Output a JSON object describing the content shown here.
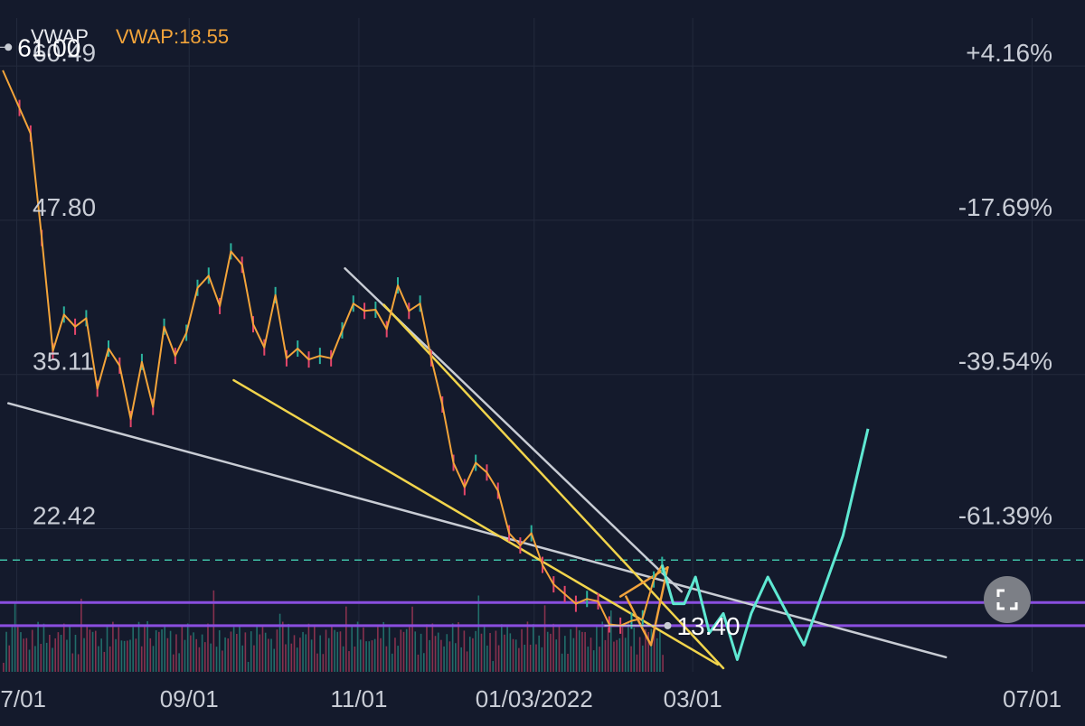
{
  "header": {
    "indicator_label": "VWAP",
    "indicator_value": "VWAP:18.55"
  },
  "colors": {
    "background": "#141a2c",
    "grid": "#232a3d",
    "axis_text": "#c9cdd6",
    "vwap_orange": "#f3a43a",
    "candle_up": "#2bb39e",
    "candle_down": "#e5466b",
    "trendline_white": "#c8ccd4",
    "trendline_yellow": "#f1d44c",
    "wedge_orange": "#f2a33c",
    "projection_cyan": "#5fe8d2",
    "purple_line": "#8a4ee0",
    "dashed_cyan": "#3fbfa6"
  },
  "fullscreen_icon": "fullscreen-expand-icon",
  "chart_data": {
    "type": "line",
    "title": "",
    "xlabel": "",
    "ylabel": "",
    "y_scale": "linear",
    "ylim": [
      9.6,
      63.4
    ],
    "grid": true,
    "x_tick_labels": [
      "07/01",
      "09/01",
      "11/01",
      "01/03/2022",
      "03/01",
      "07/01"
    ],
    "x_tick_dates": [
      "2021-07-01",
      "2021-09-01",
      "2021-11-01",
      "2022-01-03",
      "2022-03-01",
      "2022-07-01"
    ],
    "xlim": [
      "2021-06-25",
      "2022-07-20"
    ],
    "y_ticks": [
      {
        "value": 60.49,
        "label": "60.49"
      },
      {
        "value": 47.8,
        "label": "47.80"
      },
      {
        "value": 35.11,
        "label": "35.11"
      },
      {
        "value": 22.42,
        "label": "22.42"
      }
    ],
    "right_percent_labels": [
      {
        "value": 60.49,
        "label": "+4.16%"
      },
      {
        "value": 47.8,
        "label": "-17.69%"
      },
      {
        "value": 35.11,
        "label": "-39.54%"
      },
      {
        "value": 22.42,
        "label": "-61.39%"
      }
    ],
    "annotations": [
      {
        "label": "61.00",
        "x": "2021-06-28",
        "y": 61.0
      },
      {
        "label": "13.40",
        "x": "2022-02-20",
        "y": 13.4
      }
    ],
    "horizontal_lines": [
      {
        "name": "dashed",
        "y": 18.8,
        "style": "dashed"
      },
      {
        "name": "purple-upper",
        "y": 15.3,
        "style": "solid"
      },
      {
        "name": "purple-lower",
        "y": 13.4,
        "style": "solid"
      }
    ],
    "series": [
      {
        "name": "price",
        "x": [
          "2021-06-26",
          "2021-07-02",
          "2021-07-06",
          "2021-07-10",
          "2021-07-14",
          "2021-07-18",
          "2021-07-22",
          "2021-07-26",
          "2021-07-30",
          "2021-08-03",
          "2021-08-07",
          "2021-08-11",
          "2021-08-15",
          "2021-08-19",
          "2021-08-23",
          "2021-08-27",
          "2021-08-31",
          "2021-09-04",
          "2021-09-08",
          "2021-09-12",
          "2021-09-16",
          "2021-09-20",
          "2021-09-24",
          "2021-09-28",
          "2021-10-02",
          "2021-10-06",
          "2021-10-10",
          "2021-10-14",
          "2021-10-18",
          "2021-10-22",
          "2021-10-26",
          "2021-10-30",
          "2021-11-03",
          "2021-11-07",
          "2021-11-11",
          "2021-11-15",
          "2021-11-19",
          "2021-11-23",
          "2021-11-27",
          "2021-12-01",
          "2021-12-05",
          "2021-12-09",
          "2021-12-13",
          "2021-12-17",
          "2021-12-21",
          "2021-12-25",
          "2021-12-29",
          "2022-01-02",
          "2022-01-06",
          "2022-01-10",
          "2022-01-14",
          "2022-01-18",
          "2022-01-22",
          "2022-01-26",
          "2022-01-30",
          "2022-02-03",
          "2022-02-07",
          "2022-02-11",
          "2022-02-15",
          "2022-02-18"
        ],
        "values": [
          59.1,
          56.0,
          53.9,
          45.3,
          36.0,
          39.0,
          38.0,
          38.7,
          32.9,
          36.2,
          34.8,
          30.4,
          35.1,
          31.4,
          38.0,
          35.6,
          37.5,
          41.2,
          42.2,
          39.7,
          44.2,
          43.1,
          38.2,
          36.3,
          40.6,
          35.4,
          36.2,
          35.3,
          35.6,
          35.4,
          37.7,
          39.9,
          39.3,
          39.4,
          37.8,
          41.4,
          39.3,
          39.9,
          35.4,
          31.6,
          26.8,
          24.8,
          26.8,
          26.0,
          24.5,
          21.0,
          20.0,
          21.0,
          18.4,
          16.8,
          16.0,
          15.2,
          15.6,
          15.4,
          13.5,
          13.4,
          13.8,
          14.0,
          17.2,
          18.4
        ]
      },
      {
        "name": "projection",
        "x": [
          "2022-02-18",
          "2022-02-22",
          "2022-02-26",
          "2022-03-02",
          "2022-03-07",
          "2022-03-12",
          "2022-03-17",
          "2022-03-22",
          "2022-03-28",
          "2022-04-10",
          "2022-04-24",
          "2022-05-03"
        ],
        "values": [
          18.4,
          15.2,
          15.2,
          17.4,
          12.8,
          14.4,
          10.6,
          14.4,
          17.4,
          11.8,
          20.8,
          29.6
        ]
      }
    ],
    "trendlines": [
      {
        "name": "white-upper",
        "from": {
          "x": "2021-10-27",
          "y": 42.8
        },
        "to": {
          "x": "2022-02-25",
          "y": 16.2
        }
      },
      {
        "name": "white-lower",
        "from": {
          "x": "2021-06-28",
          "y": 31.7
        },
        "to": {
          "x": "2022-05-31",
          "y": 10.8
        }
      },
      {
        "name": "yellow-upper",
        "from": {
          "x": "2021-11-10",
          "y": 39.8
        },
        "to": {
          "x": "2022-03-12",
          "y": 9.9
        }
      },
      {
        "name": "yellow-lower",
        "from": {
          "x": "2021-09-17",
          "y": 33.6
        },
        "to": {
          "x": "2022-03-10",
          "y": 10.2
        }
      },
      {
        "name": "orange-top",
        "from": {
          "x": "2022-02-03",
          "y": 15.8
        },
        "to": {
          "x": "2022-02-20",
          "y": 18.2
        }
      },
      {
        "name": "orange-bottom",
        "from": {
          "x": "2022-02-05",
          "y": 15.8
        },
        "to": {
          "x": "2022-02-14",
          "y": 11.8
        }
      },
      {
        "name": "orange-right",
        "from": {
          "x": "2022-02-14",
          "y": 11.8
        },
        "to": {
          "x": "2022-02-20",
          "y": 18.2
        }
      }
    ]
  }
}
